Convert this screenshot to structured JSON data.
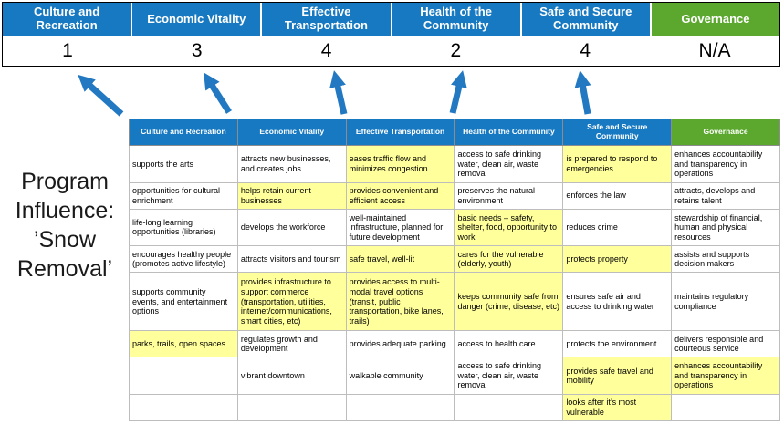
{
  "slide": {
    "program_label": "Program Influence: ’Snow Removal’"
  },
  "summary": {
    "columns": [
      {
        "label": "Culture and Recreation",
        "score": "1",
        "theme": "blue"
      },
      {
        "label": "Economic Vitality",
        "score": "3",
        "theme": "blue"
      },
      {
        "label": "Effective Transportation",
        "score": "4",
        "theme": "blue"
      },
      {
        "label": "Health of the Community",
        "score": "2",
        "theme": "blue"
      },
      {
        "label": "Safe and Secure Community",
        "score": "4",
        "theme": "blue"
      },
      {
        "label": "Governance",
        "score": "N/A",
        "theme": "green"
      }
    ]
  },
  "matrix": {
    "headers": [
      {
        "label": "Culture and Recreation",
        "theme": "blue"
      },
      {
        "label": "Economic Vitality",
        "theme": "blue"
      },
      {
        "label": "Effective Transportation",
        "theme": "blue"
      },
      {
        "label": "Health of the Community",
        "theme": "blue"
      },
      {
        "label": "Safe and Secure Community",
        "theme": "blue"
      },
      {
        "label": "Governance",
        "theme": "green"
      }
    ],
    "rows": [
      [
        {
          "text": "supports the arts",
          "highlight": false
        },
        {
          "text": "attracts new businesses, and creates jobs",
          "highlight": false
        },
        {
          "text": "eases traffic flow and minimizes congestion",
          "highlight": true
        },
        {
          "text": "access to safe drinking water, clean air, waste removal",
          "highlight": false
        },
        {
          "text": "is prepared to respond to emergencies",
          "highlight": true
        },
        {
          "text": "enhances accountability and transparency in operations",
          "highlight": false
        }
      ],
      [
        {
          "text": "opportunities for cultural enrichment",
          "highlight": false
        },
        {
          "text": "helps retain current businesses",
          "highlight": true
        },
        {
          "text": "provides convenient and efficient access",
          "highlight": true
        },
        {
          "text": "preserves the natural environment",
          "highlight": false
        },
        {
          "text": "enforces the law",
          "highlight": false
        },
        {
          "text": "attracts, develops and retains talent",
          "highlight": false
        }
      ],
      [
        {
          "text": "life-long learning opportunities (libraries)",
          "highlight": false
        },
        {
          "text": "develops the workforce",
          "highlight": false
        },
        {
          "text": "well-maintained infrastructure, planned for future development",
          "highlight": false
        },
        {
          "text": "basic needs – safety, shelter, food, opportunity to work",
          "highlight": true
        },
        {
          "text": "reduces crime",
          "highlight": false
        },
        {
          "text": "stewardship of financial, human and physical resources",
          "highlight": false
        }
      ],
      [
        {
          "text": "encourages healthy people (promotes active lifestyle)",
          "highlight": false
        },
        {
          "text": "attracts visitors and tourism",
          "highlight": false
        },
        {
          "text": "safe travel, well-lit",
          "highlight": true
        },
        {
          "text": "cares for the vulnerable (elderly, youth)",
          "highlight": true
        },
        {
          "text": "protects property",
          "highlight": true
        },
        {
          "text": "assists and supports decision makers",
          "highlight": false
        }
      ],
      [
        {
          "text": "supports community events, and entertainment options",
          "highlight": false
        },
        {
          "text": "provides infrastructure to support commerce (transportation, utilities, internet/communications, smart cities, etc)",
          "highlight": true
        },
        {
          "text": "provides access to multi-modal travel options (transit, public transportation, bike lanes, trails)",
          "highlight": true
        },
        {
          "text": "keeps community safe from danger (crime, disease, etc)",
          "highlight": true
        },
        {
          "text": "ensures safe air and access to drinking water",
          "highlight": false
        },
        {
          "text": "maintains regulatory compliance",
          "highlight": false
        }
      ],
      [
        {
          "text": "parks, trails, open spaces",
          "highlight": true
        },
        {
          "text": "regulates growth and development",
          "highlight": false
        },
        {
          "text": "provides adequate parking",
          "highlight": false
        },
        {
          "text": "access to health care",
          "highlight": false
        },
        {
          "text": "protects the environment",
          "highlight": false
        },
        {
          "text": "delivers responsible and courteous service",
          "highlight": false
        }
      ],
      [
        {
          "text": "",
          "highlight": false
        },
        {
          "text": "vibrant downtown",
          "highlight": false
        },
        {
          "text": "walkable community",
          "highlight": false
        },
        {
          "text": "access to safe drinking water, clean air, waste removal",
          "highlight": false
        },
        {
          "text": "provides safe travel and mobility",
          "highlight": true
        },
        {
          "text": "enhances accountability and transparency in operations",
          "highlight": true
        }
      ],
      [
        {
          "text": "",
          "highlight": false
        },
        {
          "text": "",
          "highlight": false
        },
        {
          "text": "",
          "highlight": false
        },
        {
          "text": "",
          "highlight": false
        },
        {
          "text": "looks after it’s most vulnerable",
          "highlight": true
        },
        {
          "text": "",
          "highlight": false
        }
      ]
    ]
  },
  "colors": {
    "header_blue": "#1779C1",
    "header_green": "#5CA82F",
    "highlight_yellow": "#FFFF9C",
    "arrow_blue": "#2279C2"
  }
}
